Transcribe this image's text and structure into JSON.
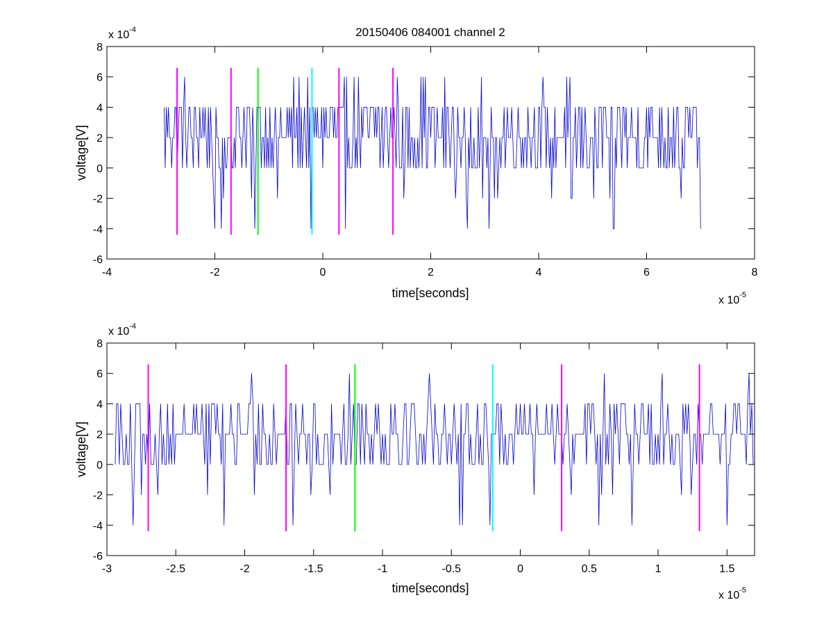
{
  "window": {
    "title": "20150406 084001 channel 2"
  },
  "chart_data": [
    {
      "type": "line",
      "title": "20150406 084001 channel 2",
      "xlabel": "time[seconds]",
      "ylabel": "voltage[V]",
      "xlim": [
        -4,
        8
      ],
      "ylim": [
        -6,
        8
      ],
      "x_exponent": {
        "base": "x 10",
        "power": "-5"
      },
      "y_exponent": {
        "base": "x 10",
        "power": "-4"
      },
      "xticks": [
        "-4",
        "-2",
        "0",
        "2",
        "4",
        "6",
        "8"
      ],
      "yticks": [
        "-6",
        "-4",
        "-2",
        "0",
        "2",
        "4",
        "6",
        "8"
      ],
      "series": [
        {
          "color": "#0000cc",
          "x_range": [
            -2.94,
            7.0
          ],
          "sample_step": 0.02,
          "values": []
        }
      ],
      "markers": [
        {
          "x": -2.7,
          "color": "#ff00ff",
          "ymin": -4.4,
          "ymax": 6.6
        },
        {
          "x": -1.7,
          "color": "#ff00ff",
          "ymin": -4.4,
          "ymax": 6.6
        },
        {
          "x": -1.2,
          "color": "#00ff00",
          "ymin": -4.4,
          "ymax": 6.6
        },
        {
          "x": -0.2,
          "color": "#00ffff",
          "ymin": -4.4,
          "ymax": 6.6
        },
        {
          "x": 0.3,
          "color": "#ff00ff",
          "ymin": -4.4,
          "ymax": 6.6
        },
        {
          "x": 1.3,
          "color": "#ff00ff",
          "ymin": -4.4,
          "ymax": 6.6
        }
      ],
      "grid": false
    },
    {
      "type": "line",
      "title": "",
      "xlabel": "time[seconds]",
      "ylabel": "voltage[V]",
      "xlim": [
        -3.0,
        1.7
      ],
      "ylim": [
        -6,
        8
      ],
      "x_exponent": {
        "base": "x 10",
        "power": "-5"
      },
      "y_exponent": {
        "base": "x 10",
        "power": "-4"
      },
      "xticks": [
        "-3",
        "-2.5",
        "-2",
        "-1.5",
        "-1",
        "-0.5",
        "0",
        "0.5",
        "1",
        "1.5"
      ],
      "yticks": [
        "-6",
        "-4",
        "-2",
        "0",
        "2",
        "4",
        "6",
        "8"
      ],
      "series": [
        {
          "color": "#0000cc",
          "x_range": [
            -2.94,
            1.7
          ],
          "sample_step": 0.01,
          "values": []
        }
      ],
      "markers": [
        {
          "x": -2.7,
          "color": "#ff00ff",
          "ymin": -4.4,
          "ymax": 6.6
        },
        {
          "x": -1.7,
          "color": "#ff00ff",
          "ymin": -4.4,
          "ymax": 6.6
        },
        {
          "x": -1.2,
          "color": "#00ff00",
          "ymin": -4.4,
          "ymax": 6.6
        },
        {
          "x": -0.2,
          "color": "#00ffff",
          "ymin": -4.4,
          "ymax": 6.6
        },
        {
          "x": 0.3,
          "color": "#ff00ff",
          "ymin": -4.4,
          "ymax": 6.6
        },
        {
          "x": 1.3,
          "color": "#ff00ff",
          "ymin": -4.4,
          "ymax": 6.6
        }
      ],
      "grid": false
    }
  ]
}
